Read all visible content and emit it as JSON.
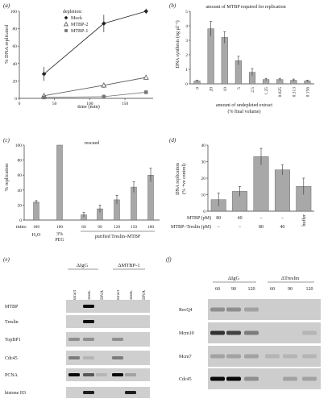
{
  "panels": {
    "a": {
      "label": "(a)",
      "legend_title": "depletion:",
      "xlabel": "time (min)",
      "ylabel": "% DNA replicated",
      "xticks": [
        0,
        50,
        100,
        150
      ],
      "yticks": [
        0,
        20,
        40,
        60,
        80,
        100
      ],
      "series": [
        {
          "name": "Mock",
          "marker": "diamond",
          "color": "#222222",
          "x": [
            35,
            120,
            180
          ],
          "y": [
            28,
            86,
            100
          ],
          "err": [
            8,
            10,
            3
          ]
        },
        {
          "name": "MTBP-2",
          "marker": "triangle",
          "color": "#555555",
          "x": [
            35,
            120,
            180
          ],
          "y": [
            3,
            15,
            24
          ],
          "err": [
            1,
            3,
            2
          ]
        },
        {
          "name": "MTBP-1",
          "marker": "square",
          "color": "#777777",
          "x": [
            35,
            120,
            180
          ],
          "y": [
            1,
            2,
            7
          ],
          "err": [
            0,
            0,
            0
          ]
        }
      ]
    },
    "b": {
      "label": "(b)",
      "title": "amount of MTBP required for replication",
      "ylabel": "DNA synthesis (ng µl⁻¹)",
      "xlabel": "amount of undepleted extract",
      "xlabel2": "(% final volume)",
      "yticks": [
        0,
        1,
        2,
        3,
        4,
        5
      ],
      "categories": [
        "0",
        "20",
        "10",
        "5",
        "2.5",
        "1.25",
        "0.625",
        "0.313",
        "0.156"
      ],
      "values": [
        0.2,
        3.8,
        3.2,
        1.6,
        0.8,
        0.3,
        0.3,
        0.25,
        0.2
      ],
      "err": [
        0.05,
        0.5,
        0.4,
        0.3,
        0.25,
        0.08,
        0.08,
        0.08,
        0.05
      ]
    },
    "c": {
      "label": "(c)",
      "title": "rescued",
      "ylabel": "% replication",
      "yticks": [
        0,
        20,
        40,
        60,
        80,
        100
      ],
      "categories": [
        "180",
        "180",
        "60",
        "90",
        "120",
        "150",
        "180"
      ],
      "values": [
        24,
        100,
        7,
        15,
        27,
        44,
        60
      ],
      "err": [
        2,
        0,
        3,
        5,
        6,
        7,
        9
      ],
      "mins_label": "mins:",
      "groups": [
        {
          "label": "H₂O",
          "start": 0,
          "end": 0
        },
        {
          "label": "3% PEG",
          "start": 1,
          "end": 1
        },
        {
          "label": "purified Treslin–MTBP",
          "start": 2,
          "end": 6
        }
      ]
    },
    "d": {
      "label": "(d)",
      "ylabel": "DNA replication",
      "ylabel2": "(% +ve control)",
      "yticks": [
        0,
        10,
        20,
        30,
        40
      ],
      "values": [
        7,
        12,
        33,
        25,
        15
      ],
      "err": [
        4,
        3,
        5,
        3,
        5
      ],
      "row1_label": "MTBP (pM)",
      "row2_label": "MTBP–Treslin (pM)",
      "row1": [
        "80",
        "40",
        "–",
        "–"
      ],
      "row2": [
        "–",
        "–",
        "80",
        "40"
      ],
      "buffer_label": "buffer"
    },
    "e": {
      "label": "(e)",
      "group1": "ΔIgG",
      "group2": "ΔMTBP-1",
      "lanes": [
        "extract",
        "chrom.",
        "-DNA",
        "extract",
        "chrom.",
        "-DNA"
      ],
      "rows": [
        "MTBP",
        "Treslin",
        "TopBP1",
        "Cdc45",
        "PCNA",
        "histone H3"
      ]
    },
    "f": {
      "label": "(f)",
      "group1": "ΔIgG",
      "group2": "ΔTreslin",
      "lanes": [
        "60",
        "90",
        "120",
        "60",
        "90",
        "120"
      ],
      "rows": [
        "RecQ4",
        "Mcm10",
        "Mcm7",
        "Cdc45"
      ]
    }
  }
}
